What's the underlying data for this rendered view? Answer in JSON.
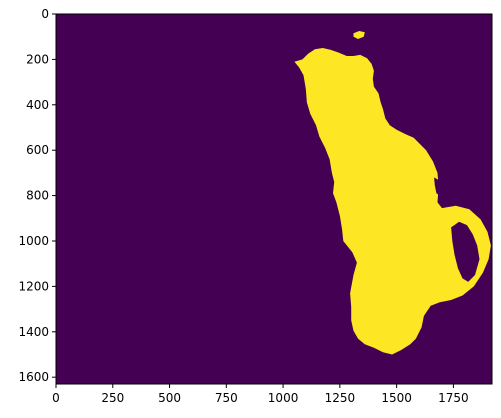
{
  "chart_data": {
    "type": "heatmap",
    "title": "",
    "xlabel": "",
    "ylabel": "",
    "image_width": 1920,
    "image_height": 1630,
    "xlim": [
      0,
      1920
    ],
    "ylim": [
      1630,
      0
    ],
    "x_ticks": [
      0,
      250,
      500,
      750,
      1000,
      1250,
      1500,
      1750
    ],
    "y_ticks": [
      0,
      200,
      400,
      600,
      800,
      1000,
      1200,
      1400,
      1600
    ],
    "x_tick_labels": [
      "0",
      "250",
      "500",
      "750",
      "1000",
      "1250",
      "1500",
      "1750"
    ],
    "y_tick_labels": [
      "0",
      "200",
      "400",
      "600",
      "800",
      "1000",
      "1200",
      "1400",
      "1600"
    ],
    "colormap": "viridis",
    "mask_values": {
      "background": 0,
      "foreground": 1
    },
    "colors": {
      "background": "#440154",
      "foreground": "#FDE725",
      "axis": "#000000"
    },
    "regions": [
      {
        "name": "main-landmass",
        "value": 1,
        "outline": [
          [
            1050,
            210
          ],
          [
            1085,
            200
          ],
          [
            1110,
            175
          ],
          [
            1140,
            155
          ],
          [
            1175,
            150
          ],
          [
            1210,
            158
          ],
          [
            1245,
            170
          ],
          [
            1280,
            185
          ],
          [
            1310,
            185
          ],
          [
            1340,
            180
          ],
          [
            1370,
            195
          ],
          [
            1390,
            220
          ],
          [
            1400,
            250
          ],
          [
            1395,
            285
          ],
          [
            1400,
            320
          ],
          [
            1420,
            350
          ],
          [
            1430,
            390
          ],
          [
            1440,
            420
          ],
          [
            1450,
            460
          ],
          [
            1470,
            490
          ],
          [
            1500,
            510
          ],
          [
            1540,
            530
          ],
          [
            1575,
            545
          ],
          [
            1600,
            570
          ],
          [
            1630,
            600
          ],
          [
            1660,
            650
          ],
          [
            1680,
            700
          ],
          [
            1685,
            760
          ],
          [
            1680,
            830
          ],
          [
            1700,
            855
          ],
          [
            1760,
            845
          ],
          [
            1820,
            860
          ],
          [
            1870,
            905
          ],
          [
            1900,
            960
          ],
          [
            1915,
            1020
          ],
          [
            1905,
            1080
          ],
          [
            1880,
            1140
          ],
          [
            1840,
            1200
          ],
          [
            1790,
            1240
          ],
          [
            1740,
            1260
          ],
          [
            1690,
            1270
          ],
          [
            1650,
            1285
          ],
          [
            1620,
            1330
          ],
          [
            1610,
            1380
          ],
          [
            1585,
            1430
          ],
          [
            1560,
            1455
          ],
          [
            1520,
            1480
          ],
          [
            1480,
            1500
          ],
          [
            1440,
            1490
          ],
          [
            1400,
            1470
          ],
          [
            1360,
            1455
          ],
          [
            1330,
            1430
          ],
          [
            1310,
            1395
          ],
          [
            1300,
            1350
          ],
          [
            1300,
            1290
          ],
          [
            1295,
            1230
          ],
          [
            1310,
            1150
          ],
          [
            1325,
            1095
          ],
          [
            1305,
            1050
          ],
          [
            1265,
            1000
          ],
          [
            1260,
            950
          ],
          [
            1250,
            890
          ],
          [
            1235,
            830
          ],
          [
            1220,
            790
          ],
          [
            1225,
            740
          ],
          [
            1215,
            700
          ],
          [
            1205,
            640
          ],
          [
            1185,
            590
          ],
          [
            1160,
            540
          ],
          [
            1145,
            490
          ],
          [
            1120,
            440
          ],
          [
            1105,
            390
          ],
          [
            1100,
            330
          ],
          [
            1090,
            270
          ],
          [
            1070,
            235
          ]
        ]
      },
      {
        "name": "small-island",
        "value": 1,
        "outline": [
          [
            1310,
            85
          ],
          [
            1335,
            75
          ],
          [
            1360,
            80
          ],
          [
            1355,
            100
          ],
          [
            1330,
            110
          ],
          [
            1310,
            100
          ]
        ]
      },
      {
        "name": "eastern-lake",
        "value": 0,
        "outline": [
          [
            1740,
            940
          ],
          [
            1775,
            915
          ],
          [
            1810,
            930
          ],
          [
            1835,
            970
          ],
          [
            1855,
            1020
          ],
          [
            1865,
            1080
          ],
          [
            1845,
            1150
          ],
          [
            1815,
            1180
          ],
          [
            1790,
            1165
          ],
          [
            1770,
            1120
          ],
          [
            1755,
            1060
          ],
          [
            1745,
            1000
          ]
        ]
      },
      {
        "name": "coastal-inlet",
        "value": 0,
        "outline": [
          [
            1665,
            720
          ],
          [
            1690,
            735
          ],
          [
            1700,
            770
          ],
          [
            1690,
            800
          ],
          [
            1675,
            790
          ],
          [
            1668,
            755
          ]
        ]
      }
    ]
  }
}
